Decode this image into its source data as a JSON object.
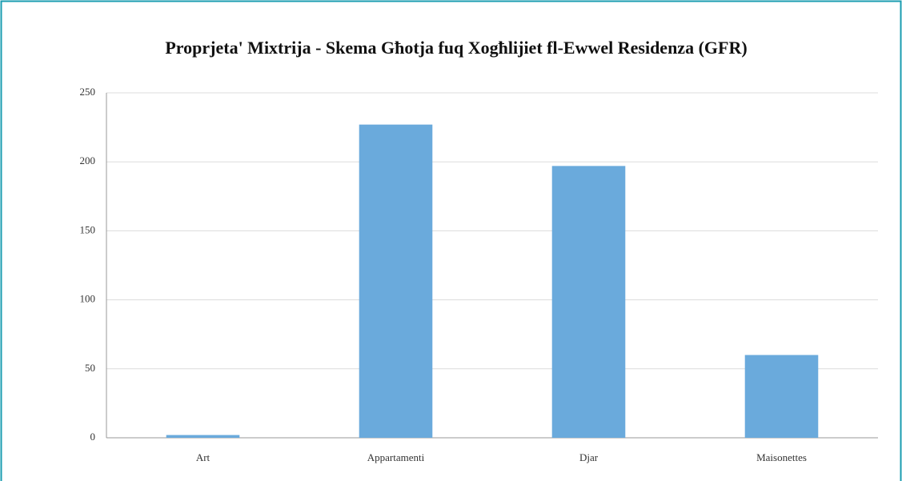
{
  "chart_data": {
    "type": "bar",
    "title": "Proprjeta' Mixtrija - Skema Għotja fuq Xogħlijiet fl-Ewwel Residenza (GFR)",
    "categories": [
      "Art",
      "Appartamenti",
      "Djar",
      "Maisonettes"
    ],
    "values": [
      2,
      227,
      197,
      60
    ],
    "color": "#6aaadc",
    "ylim": [
      0,
      250
    ],
    "yticks": [
      0,
      50,
      100,
      150,
      200,
      250
    ],
    "grid": true
  }
}
